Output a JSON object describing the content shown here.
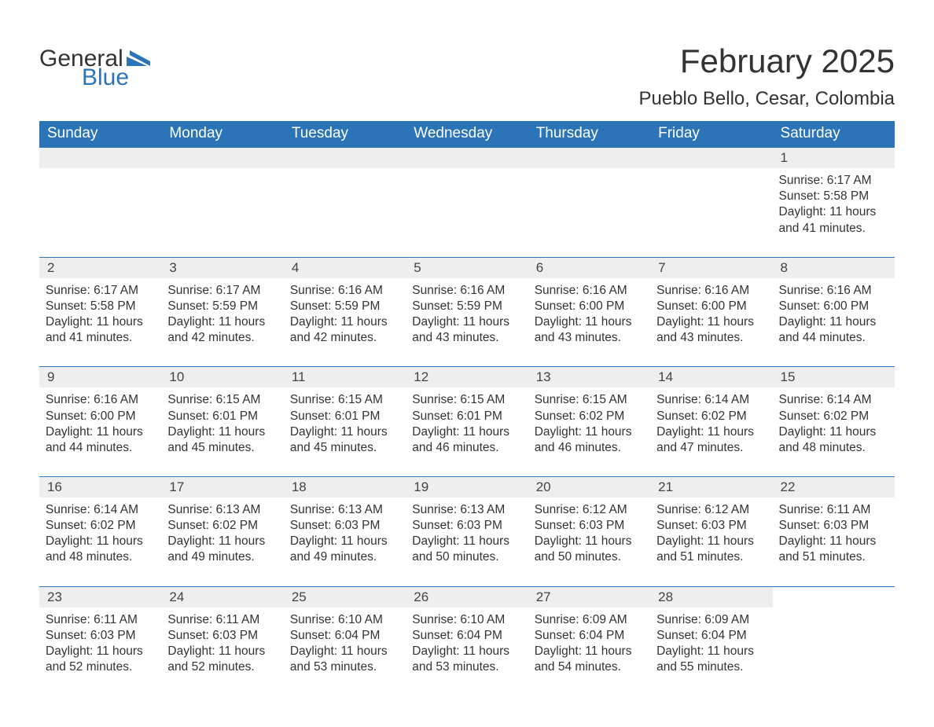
{
  "logo": {
    "word1": "General",
    "word2": "Blue",
    "flag_color": "#2b74b8"
  },
  "title": "February 2025",
  "location": "Pueblo Bello, Cesar, Colombia",
  "colors": {
    "header_bg": "#2b74b8",
    "header_fg": "#ffffff",
    "daynum_bg": "#eeeeee",
    "rule": "#2b74b8",
    "text": "#333333"
  },
  "fonts": {
    "title_size_pt": 32,
    "location_size_pt": 18,
    "header_size_pt": 14,
    "body_size_pt": 11.5
  },
  "weekdays": [
    "Sunday",
    "Monday",
    "Tuesday",
    "Wednesday",
    "Thursday",
    "Friday",
    "Saturday"
  ],
  "first_weekday_index": 6,
  "days": [
    {
      "n": 1,
      "sunrise": "6:17 AM",
      "sunset": "5:58 PM",
      "daylight": "11 hours and 41 minutes."
    },
    {
      "n": 2,
      "sunrise": "6:17 AM",
      "sunset": "5:58 PM",
      "daylight": "11 hours and 41 minutes."
    },
    {
      "n": 3,
      "sunrise": "6:17 AM",
      "sunset": "5:59 PM",
      "daylight": "11 hours and 42 minutes."
    },
    {
      "n": 4,
      "sunrise": "6:16 AM",
      "sunset": "5:59 PM",
      "daylight": "11 hours and 42 minutes."
    },
    {
      "n": 5,
      "sunrise": "6:16 AM",
      "sunset": "5:59 PM",
      "daylight": "11 hours and 43 minutes."
    },
    {
      "n": 6,
      "sunrise": "6:16 AM",
      "sunset": "6:00 PM",
      "daylight": "11 hours and 43 minutes."
    },
    {
      "n": 7,
      "sunrise": "6:16 AM",
      "sunset": "6:00 PM",
      "daylight": "11 hours and 43 minutes."
    },
    {
      "n": 8,
      "sunrise": "6:16 AM",
      "sunset": "6:00 PM",
      "daylight": "11 hours and 44 minutes."
    },
    {
      "n": 9,
      "sunrise": "6:16 AM",
      "sunset": "6:00 PM",
      "daylight": "11 hours and 44 minutes."
    },
    {
      "n": 10,
      "sunrise": "6:15 AM",
      "sunset": "6:01 PM",
      "daylight": "11 hours and 45 minutes."
    },
    {
      "n": 11,
      "sunrise": "6:15 AM",
      "sunset": "6:01 PM",
      "daylight": "11 hours and 45 minutes."
    },
    {
      "n": 12,
      "sunrise": "6:15 AM",
      "sunset": "6:01 PM",
      "daylight": "11 hours and 46 minutes."
    },
    {
      "n": 13,
      "sunrise": "6:15 AM",
      "sunset": "6:02 PM",
      "daylight": "11 hours and 46 minutes."
    },
    {
      "n": 14,
      "sunrise": "6:14 AM",
      "sunset": "6:02 PM",
      "daylight": "11 hours and 47 minutes."
    },
    {
      "n": 15,
      "sunrise": "6:14 AM",
      "sunset": "6:02 PM",
      "daylight": "11 hours and 48 minutes."
    },
    {
      "n": 16,
      "sunrise": "6:14 AM",
      "sunset": "6:02 PM",
      "daylight": "11 hours and 48 minutes."
    },
    {
      "n": 17,
      "sunrise": "6:13 AM",
      "sunset": "6:02 PM",
      "daylight": "11 hours and 49 minutes."
    },
    {
      "n": 18,
      "sunrise": "6:13 AM",
      "sunset": "6:03 PM",
      "daylight": "11 hours and 49 minutes."
    },
    {
      "n": 19,
      "sunrise": "6:13 AM",
      "sunset": "6:03 PM",
      "daylight": "11 hours and 50 minutes."
    },
    {
      "n": 20,
      "sunrise": "6:12 AM",
      "sunset": "6:03 PM",
      "daylight": "11 hours and 50 minutes."
    },
    {
      "n": 21,
      "sunrise": "6:12 AM",
      "sunset": "6:03 PM",
      "daylight": "11 hours and 51 minutes."
    },
    {
      "n": 22,
      "sunrise": "6:11 AM",
      "sunset": "6:03 PM",
      "daylight": "11 hours and 51 minutes."
    },
    {
      "n": 23,
      "sunrise": "6:11 AM",
      "sunset": "6:03 PM",
      "daylight": "11 hours and 52 minutes."
    },
    {
      "n": 24,
      "sunrise": "6:11 AM",
      "sunset": "6:03 PM",
      "daylight": "11 hours and 52 minutes."
    },
    {
      "n": 25,
      "sunrise": "6:10 AM",
      "sunset": "6:04 PM",
      "daylight": "11 hours and 53 minutes."
    },
    {
      "n": 26,
      "sunrise": "6:10 AM",
      "sunset": "6:04 PM",
      "daylight": "11 hours and 53 minutes."
    },
    {
      "n": 27,
      "sunrise": "6:09 AM",
      "sunset": "6:04 PM",
      "daylight": "11 hours and 54 minutes."
    },
    {
      "n": 28,
      "sunrise": "6:09 AM",
      "sunset": "6:04 PM",
      "daylight": "11 hours and 55 minutes."
    }
  ],
  "labels": {
    "sunrise": "Sunrise:",
    "sunset": "Sunset:",
    "daylight": "Daylight:"
  }
}
